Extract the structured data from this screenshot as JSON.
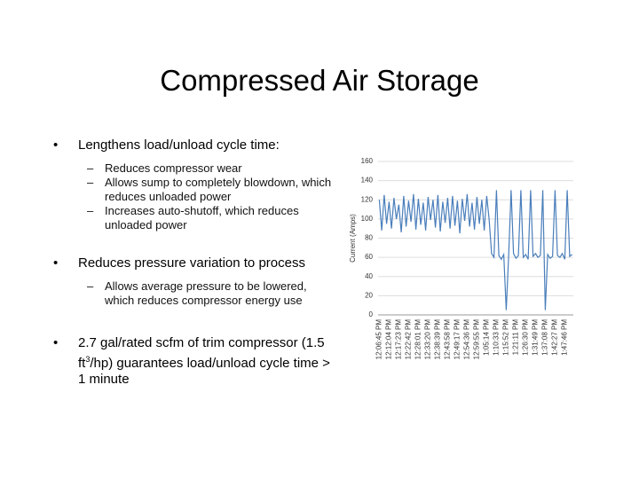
{
  "title": "Compressed Air Storage",
  "bullets": [
    {
      "text": "Lengthens load/unload cycle time:",
      "subs": [
        "Reduces compressor wear",
        "Allows sump to completely blowdown, which reduces unloaded power",
        "Increases auto-shutoff, which reduces unloaded power"
      ]
    },
    {
      "text": "Reduces pressure variation to process",
      "subs": [
        "Allows average pressure to be lowered, which reduces compressor energy use"
      ]
    },
    {
      "parts": [
        "2.7  gal/rated scfm of trim compressor (1.5 ft",
        "3",
        "/hp) guarantees load/unload cycle time > 1 minute"
      ],
      "subs": []
    }
  ],
  "chart_data": {
    "type": "line",
    "y_label": "Current (Amps)",
    "categories": [
      "12:06:45 PM",
      null,
      null,
      null,
      "12:12:04 PM",
      null,
      null,
      null,
      "12:17:23 PM",
      null,
      null,
      null,
      "12:22:42 PM",
      null,
      null,
      null,
      "12:28:01 PM",
      null,
      null,
      null,
      "12:33:20 PM",
      null,
      null,
      null,
      "12:38:39 PM",
      null,
      null,
      null,
      "12:43:58 PM",
      null,
      null,
      null,
      "12:49:17 PM",
      null,
      null,
      null,
      "12:54:36 PM",
      null,
      null,
      null,
      "12:59:55 PM",
      null,
      null,
      null,
      "1:05:14 PM",
      null,
      null,
      null,
      "1:10:33 PM",
      null,
      null,
      null,
      "1:15:52 PM",
      null,
      null,
      null,
      "1:21:11 PM",
      null,
      null,
      null,
      "1:26:30 PM",
      null,
      null,
      null,
      "1:31:49 PM",
      null,
      null,
      null,
      "1:37:08 PM",
      null,
      null,
      null,
      "1:42:27 PM",
      null,
      null,
      null,
      "1:47:46 PM",
      null,
      null,
      null
    ],
    "series": [
      {
        "name": "Current",
        "color": "#4a7ebb",
        "values": [
          120,
          88,
          125,
          95,
          118,
          90,
          122,
          100,
          115,
          86,
          124,
          92,
          119,
          97,
          126,
          89,
          121,
          94,
          117,
          88,
          123,
          99,
          120,
          91,
          125,
          87,
          118,
          96,
          122,
          90,
          124,
          93,
          119,
          85,
          121,
          98,
          126,
          92,
          117,
          89,
          123,
          95,
          120,
          88,
          124,
          100,
          64,
          60,
          130,
          62,
          58,
          63,
          5,
          61,
          130,
          64,
          59,
          62,
          130,
          60,
          63,
          58,
          130,
          61,
          64,
          60,
          62,
          130,
          5,
          63,
          59,
          61,
          130,
          62,
          60,
          64,
          58,
          130,
          61,
          63
        ]
      }
    ],
    "ylim": [
      0,
      160
    ],
    "yticks": [
      0,
      20,
      40,
      60,
      80,
      100,
      120,
      140,
      160
    ],
    "grid": true
  }
}
